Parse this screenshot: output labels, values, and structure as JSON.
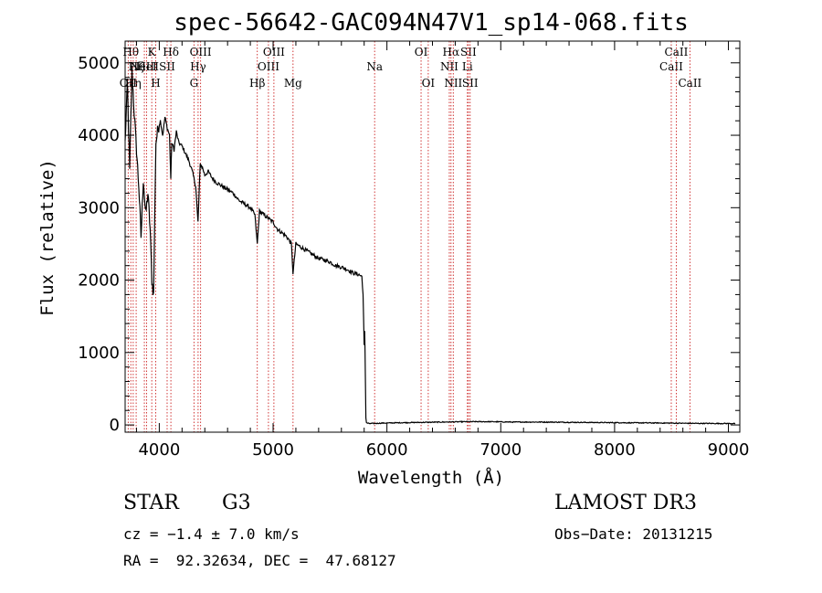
{
  "chart_data": {
    "type": "line",
    "title": "spec-56642-GAC094N47V1_sp14-068.fits",
    "xlabel": "Wavelength (Å)",
    "ylabel": "Flux (relative)",
    "xlim": [
      3700,
      9100
    ],
    "ylim": [
      -100,
      5300
    ],
    "xticks": [
      4000,
      5000,
      6000,
      7000,
      8000,
      9000
    ],
    "yticks": [
      0,
      1000,
      2000,
      3000,
      4000,
      5000
    ],
    "series": [
      {
        "name": "flux",
        "x": [
          3700,
          3720,
          3740,
          3760,
          3780,
          3800,
          3820,
          3840,
          3860,
          3880,
          3900,
          3920,
          3935,
          3950,
          3970,
          3990,
          4010,
          4030,
          4050,
          4070,
          4090,
          4101,
          4110,
          4130,
          4150,
          4170,
          4200,
          4230,
          4260,
          4290,
          4320,
          4340,
          4360,
          4380,
          4400,
          4430,
          4460,
          4500,
          4550,
          4600,
          4650,
          4700,
          4750,
          4800,
          4840,
          4861,
          4880,
          4920,
          4960,
          5000,
          5040,
          5080,
          5120,
          5160,
          5175,
          5200,
          5250,
          5300,
          5350,
          5400,
          5450,
          5500,
          5550,
          5600,
          5650,
          5700,
          5750,
          5780,
          5790,
          5800,
          5805,
          5810,
          5815,
          5820,
          5830,
          5840,
          5850,
          5880,
          5950,
          6100,
          6300,
          6500,
          6700,
          6900,
          7100,
          7300,
          7500,
          7700,
          7900,
          8100,
          8300,
          8500,
          8700,
          8900,
          9060
        ],
        "y": [
          3900,
          4700,
          3500,
          4900,
          4300,
          3800,
          3300,
          2600,
          3400,
          2900,
          3200,
          2700,
          2000,
          1800,
          3900,
          4100,
          4200,
          4000,
          4250,
          4100,
          4000,
          3400,
          3900,
          3800,
          4050,
          3900,
          3850,
          3750,
          3650,
          3500,
          3300,
          2800,
          3600,
          3550,
          3450,
          3500,
          3420,
          3350,
          3300,
          3250,
          3200,
          3100,
          3050,
          3000,
          2900,
          2500,
          2950,
          2900,
          2850,
          2800,
          2700,
          2650,
          2600,
          2500,
          2100,
          2500,
          2450,
          2400,
          2350,
          2300,
          2280,
          2250,
          2200,
          2180,
          2150,
          2100,
          2080,
          2050,
          1800,
          1100,
          1300,
          700,
          100,
          30,
          25,
          20,
          20,
          20,
          25,
          30,
          35,
          40,
          45,
          45,
          40,
          40,
          38,
          35,
          33,
          30,
          28,
          25,
          22,
          20,
          20
        ]
      }
    ],
    "lines": [
      {
        "x": 3727,
        "label": "OII",
        "row": 3
      },
      {
        "x": 3750,
        "label": "Hθ",
        "row": 1
      },
      {
        "x": 3771,
        "label": "Hη",
        "row": 3
      },
      {
        "x": 3797,
        "label": "Hζ",
        "row": 2
      },
      {
        "x": 3869,
        "label": "NeIII",
        "row": 2
      },
      {
        "x": 3889,
        "label": "HeI",
        "row": 2
      },
      {
        "x": 3934,
        "label": "K",
        "row": 1
      },
      {
        "x": 3969,
        "label": "H",
        "row": 3
      },
      {
        "x": 4069,
        "label": "SII",
        "row": 2
      },
      {
        "x": 4102,
        "label": "Hδ",
        "row": 1
      },
      {
        "x": 4305,
        "label": "G",
        "row": 3
      },
      {
        "x": 4341,
        "label": "Hγ",
        "row": 2
      },
      {
        "x": 4363,
        "label": "OIII",
        "row": 1
      },
      {
        "x": 4861,
        "label": "Hβ",
        "row": 3
      },
      {
        "x": 4959,
        "label": "OIII",
        "row": 2
      },
      {
        "x": 5007,
        "label": "OIII",
        "row": 1
      },
      {
        "x": 5175,
        "label": "Mg",
        "row": 3
      },
      {
        "x": 5892,
        "label": "Na",
        "row": 2
      },
      {
        "x": 6300,
        "label": "OI",
        "row": 1
      },
      {
        "x": 6363,
        "label": "OI",
        "row": 3
      },
      {
        "x": 6548,
        "label": "NII",
        "row": 2
      },
      {
        "x": 6563,
        "label": "Hα",
        "row": 1
      },
      {
        "x": 6583,
        "label": "NII",
        "row": 3
      },
      {
        "x": 6707,
        "label": "Li",
        "row": 2
      },
      {
        "x": 6716,
        "label": "SII",
        "row": 1
      },
      {
        "x": 6731,
        "label": "SII",
        "row": 3
      },
      {
        "x": 8498,
        "label": "CaII",
        "row": 2
      },
      {
        "x": 8542,
        "label": "CaII",
        "row": 1
      },
      {
        "x": 8662,
        "label": "CaII",
        "row": 3
      }
    ]
  },
  "info": {
    "object_type": "STAR",
    "subclass": "G3",
    "survey": "LAMOST DR3",
    "cz": "cz = −1.4 ± 7.0 km/s",
    "obs_date": "Obs−Date: 20131215",
    "radec": "RA =  92.32634, DEC =  47.68127"
  },
  "colors": {
    "line_marker": "#cc2222",
    "spectrum": "#000000"
  }
}
